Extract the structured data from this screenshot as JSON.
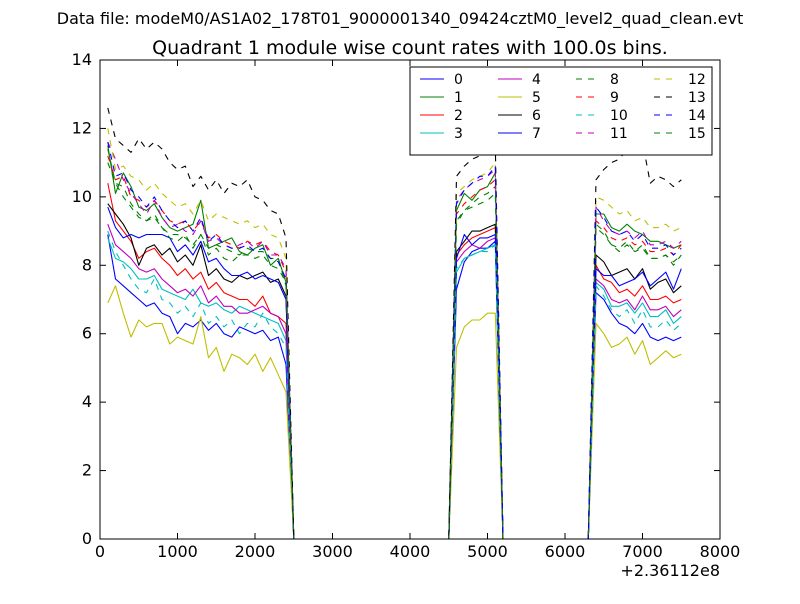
{
  "figure": {
    "suptitle": "Data file: modeM0/AS1A02_178T01_9000001340_09424cztM0_level2_quad_clean.evt"
  },
  "chart_data": {
    "type": "line",
    "title": "Quadrant 1 module wise count rates with 100.0s bins.",
    "xlabel": "",
    "ylabel": "",
    "x_offset_label": "+2.36112e8",
    "xlim": [
      0,
      8000
    ],
    "ylim": [
      0,
      14
    ],
    "xticks": [
      0,
      1000,
      2000,
      3000,
      4000,
      5000,
      6000,
      7000,
      8000
    ],
    "yticks": [
      0,
      2,
      4,
      6,
      8,
      10,
      12,
      14
    ],
    "xtick_labels": [
      "0",
      "1000",
      "2000",
      "3000",
      "4000",
      "5000",
      "6000",
      "7000",
      "8000"
    ],
    "ytick_labels": [
      "0",
      "2",
      "4",
      "6",
      "8",
      "10",
      "12",
      "14"
    ],
    "grid": false,
    "legend_position": "top-right",
    "legend_columns": 4,
    "segments": [
      {
        "x_start": 100,
        "x_step": 100,
        "count": 24
      },
      {
        "x_start": 4600,
        "x_step": 100,
        "count": 6
      },
      {
        "x_start": 6400,
        "x_step": 100,
        "count": 12
      }
    ],
    "series": [
      {
        "name": "0",
        "color": "#0000ff",
        "dash": "solid",
        "seg1": [
          8.9,
          7.6,
          7.4,
          7.2,
          7.0,
          6.8,
          6.9,
          6.6,
          6.5,
          6.0,
          6.3,
          6.2,
          6.4,
          6.1,
          6.3,
          6.0,
          5.9,
          6.2,
          6.1,
          6.0,
          6.1,
          5.8,
          5.9,
          5.1
        ],
        "seg2": [
          7.3,
          8.1,
          8.4,
          8.5,
          8.5,
          8.7
        ],
        "seg3": [
          7.2,
          7.0,
          6.6,
          6.3,
          6.2,
          6.0,
          6.3,
          5.9,
          5.8,
          5.9,
          5.8,
          5.9
        ]
      },
      {
        "name": "1",
        "color": "#008000",
        "dash": "solid",
        "seg1": [
          11.5,
          10.1,
          10.7,
          10.3,
          9.7,
          9.6,
          9.8,
          9.4,
          9.1,
          9.0,
          9.1,
          9.2,
          9.9,
          8.5,
          8.6,
          8.7,
          8.8,
          8.4,
          8.3,
          8.5,
          8.6,
          8.0,
          8.2,
          7.5
        ],
        "seg2": [
          9.6,
          10.1,
          9.9,
          10.2,
          10.3,
          10.7
        ],
        "seg3": [
          9.5,
          9.5,
          9.1,
          9.0,
          9.2,
          9.0,
          8.9,
          8.7,
          8.7,
          8.6,
          8.5,
          8.6
        ]
      },
      {
        "name": "2",
        "color": "#ff0000",
        "dash": "solid",
        "seg1": [
          10.4,
          9.3,
          9.0,
          8.7,
          8.2,
          8.4,
          8.5,
          8.2,
          8.0,
          7.7,
          7.9,
          7.6,
          7.8,
          7.3,
          7.5,
          7.2,
          7.1,
          7.0,
          7.0,
          6.8,
          7.1,
          6.6,
          6.5,
          6.3
        ],
        "seg2": [
          8.3,
          8.6,
          8.8,
          8.9,
          9.0,
          9.1
        ],
        "seg3": [
          8.0,
          7.6,
          7.5,
          7.2,
          7.3,
          7.1,
          7.4,
          7.0,
          7.0,
          7.1,
          6.9,
          7.0
        ]
      },
      {
        "name": "3",
        "color": "#00bfbf",
        "dash": "solid",
        "seg1": [
          8.8,
          8.2,
          8.1,
          7.9,
          7.6,
          7.6,
          7.7,
          7.3,
          7.2,
          7.1,
          7.0,
          7.3,
          6.9,
          6.8,
          6.9,
          6.7,
          6.6,
          6.8,
          6.7,
          6.6,
          6.5,
          6.4,
          6.3,
          5.8
        ],
        "seg2": [
          7.8,
          8.2,
          8.3,
          8.4,
          8.5,
          8.6
        ],
        "seg3": [
          7.5,
          7.3,
          6.8,
          6.8,
          6.9,
          6.6,
          6.9,
          6.5,
          6.5,
          6.7,
          6.3,
          6.5
        ]
      },
      {
        "name": "4",
        "color": "#bf00bf",
        "dash": "solid",
        "seg1": [
          9.2,
          8.6,
          8.4,
          8.2,
          7.9,
          7.8,
          7.9,
          7.6,
          7.4,
          7.2,
          7.3,
          7.1,
          7.4,
          6.9,
          7.1,
          6.8,
          6.8,
          6.6,
          6.6,
          6.7,
          6.8,
          6.6,
          6.5,
          6.0
        ],
        "seg2": [
          8.1,
          8.4,
          8.6,
          8.5,
          8.7,
          8.8
        ],
        "seg3": [
          7.6,
          7.4,
          7.0,
          6.9,
          7.0,
          6.7,
          7.1,
          6.7,
          6.7,
          6.8,
          6.5,
          6.7
        ]
      },
      {
        "name": "5",
        "color": "#bfbf00",
        "dash": "solid",
        "seg1": [
          6.9,
          7.4,
          6.6,
          5.9,
          6.4,
          6.2,
          6.3,
          6.3,
          5.7,
          5.9,
          5.8,
          5.7,
          6.5,
          5.3,
          5.6,
          4.9,
          5.4,
          5.3,
          5.1,
          5.4,
          4.9,
          5.3,
          4.8,
          4.3
        ],
        "seg2": [
          5.6,
          6.2,
          6.4,
          6.4,
          6.6,
          6.6
        ],
        "seg3": [
          6.3,
          6.0,
          5.6,
          5.7,
          5.9,
          5.4,
          5.8,
          5.1,
          5.3,
          5.5,
          5.3,
          5.4
        ]
      },
      {
        "name": "6",
        "color": "#000000",
        "dash": "solid",
        "seg1": [
          9.8,
          9.5,
          9.2,
          8.8,
          8.0,
          8.5,
          8.6,
          8.3,
          8.5,
          8.1,
          8.3,
          8.0,
          8.6,
          7.7,
          7.9,
          7.6,
          7.5,
          7.7,
          7.6,
          7.7,
          7.8,
          7.5,
          7.6,
          7.1
        ],
        "seg2": [
          8.4,
          8.7,
          9.0,
          9.0,
          9.1,
          9.2
        ],
        "seg3": [
          8.3,
          8.1,
          7.7,
          7.8,
          7.9,
          7.6,
          7.9,
          7.3,
          7.5,
          7.6,
          7.2,
          7.4
        ]
      },
      {
        "name": "7",
        "color": "#0000ff",
        "dash": "solid",
        "seg1": [
          9.7,
          9.1,
          8.8,
          8.9,
          8.8,
          8.9,
          8.9,
          8.9,
          8.8,
          8.4,
          8.6,
          8.3,
          8.7,
          8.1,
          8.2,
          7.9,
          7.7,
          7.7,
          7.8,
          7.6,
          7.7,
          7.6,
          7.5,
          7.0
        ],
        "seg2": [
          8.2,
          8.9,
          8.6,
          8.8,
          8.8,
          8.9
        ],
        "seg3": [
          7.9,
          7.7,
          7.7,
          7.4,
          7.5,
          7.6,
          7.8,
          7.4,
          7.6,
          7.8,
          7.3,
          7.9
        ]
      },
      {
        "name": "8",
        "color": "#008000",
        "dash": "dashed",
        "seg1": [
          11.4,
          10.4,
          10.3,
          9.8,
          9.5,
          9.3,
          9.4,
          9.1,
          8.9,
          8.9,
          8.8,
          8.6,
          8.9,
          8.5,
          8.6,
          8.5,
          8.4,
          8.3,
          8.5,
          8.4,
          8.4,
          8.2,
          8.2,
          7.4
        ],
        "seg2": [
          9.3,
          9.6,
          9.8,
          10.0,
          10.1,
          10.3
        ],
        "seg3": [
          9.1,
          8.9,
          8.6,
          8.4,
          8.6,
          8.4,
          8.5,
          8.2,
          8.2,
          8.3,
          8.0,
          8.3
        ]
      },
      {
        "name": "9",
        "color": "#ff0000",
        "dash": "dashed",
        "seg1": [
          11.2,
          10.5,
          10.6,
          10.0,
          9.9,
          9.7,
          9.9,
          9.6,
          9.3,
          9.2,
          9.3,
          9.0,
          9.3,
          8.8,
          8.9,
          8.7,
          8.6,
          8.5,
          8.7,
          8.6,
          8.7,
          8.4,
          8.3,
          7.8
        ],
        "seg2": [
          9.5,
          9.8,
          10.0,
          10.2,
          10.3,
          10.5
        ],
        "seg3": [
          9.3,
          9.1,
          8.8,
          8.7,
          8.8,
          8.6,
          8.7,
          8.4,
          8.4,
          8.5,
          8.3,
          8.6
        ]
      },
      {
        "name": "10",
        "color": "#00bfbf",
        "dash": "dashed",
        "seg1": [
          9.0,
          8.4,
          8.0,
          7.6,
          7.3,
          7.2,
          7.6,
          7.0,
          6.9,
          6.6,
          6.8,
          6.5,
          6.9,
          6.3,
          6.5,
          6.2,
          6.4,
          6.0,
          6.3,
          6.2,
          6.6,
          6.2,
          6.0,
          5.6
        ],
        "seg2": [
          7.9,
          8.2,
          8.3,
          8.4,
          8.4,
          8.6
        ],
        "seg3": [
          7.4,
          7.1,
          6.7,
          6.5,
          6.7,
          6.3,
          6.7,
          6.2,
          6.2,
          6.4,
          6.1,
          6.3
        ]
      },
      {
        "name": "11",
        "color": "#bf00bf",
        "dash": "dashed",
        "seg1": [
          11.6,
          11.1,
          10.5,
          10.1,
          9.8,
          9.5,
          9.9,
          9.4,
          9.1,
          9.2,
          9.0,
          8.9,
          9.3,
          8.7,
          8.8,
          8.6,
          8.5,
          8.6,
          8.7,
          8.5,
          8.7,
          8.3,
          8.3,
          7.9
        ],
        "seg2": [
          9.9,
          10.2,
          10.4,
          10.5,
          10.6,
          10.8
        ],
        "seg3": [
          9.7,
          9.3,
          9.0,
          8.9,
          9.0,
          8.8,
          9.0,
          8.6,
          8.6,
          8.7,
          8.5,
          8.7
        ]
      },
      {
        "name": "12",
        "color": "#bfbf00",
        "dash": "dashed",
        "seg1": [
          12.0,
          10.8,
          10.9,
          10.6,
          10.5,
          10.2,
          10.4,
          10.1,
          9.9,
          9.7,
          9.8,
          9.5,
          9.9,
          9.3,
          9.5,
          9.4,
          9.3,
          9.2,
          9.3,
          9.1,
          9.2,
          8.9,
          8.8,
          8.2
        ],
        "seg2": [
          10.1,
          10.3,
          10.5,
          10.6,
          10.7,
          11.0
        ],
        "seg3": [
          10.0,
          9.9,
          9.7,
          9.5,
          9.6,
          9.3,
          9.4,
          9.1,
          9.1,
          9.2,
          9.0,
          9.1
        ]
      },
      {
        "name": "13",
        "color": "#000000",
        "dash": "dashed",
        "seg1": [
          12.6,
          11.7,
          11.5,
          11.3,
          11.7,
          11.4,
          11.6,
          11.4,
          11.0,
          10.8,
          10.9,
          10.3,
          10.6,
          10.2,
          10.5,
          10.1,
          10.4,
          10.3,
          10.5,
          10.0,
          9.9,
          9.6,
          9.5,
          8.8
        ],
        "seg2": [
          10.6,
          10.9,
          11.1,
          11.2,
          11.3,
          11.5
        ],
        "seg3": [
          10.5,
          10.8,
          11.0,
          11.1,
          11.4,
          11.3,
          11.6,
          10.4,
          10.6,
          10.5,
          10.3,
          10.5
        ]
      },
      {
        "name": "14",
        "color": "#0000ff",
        "dash": "dashed",
        "seg1": [
          11.6,
          10.6,
          10.7,
          10.2,
          10.0,
          9.7,
          10.0,
          9.6,
          9.3,
          9.1,
          9.3,
          9.0,
          9.4,
          8.7,
          8.9,
          8.6,
          8.5,
          8.5,
          8.6,
          8.4,
          8.5,
          8.2,
          8.1,
          7.6
        ],
        "seg2": [
          9.8,
          10.2,
          10.4,
          10.6,
          10.6,
          10.9
        ],
        "seg3": [
          9.7,
          9.4,
          9.0,
          8.9,
          9.0,
          8.7,
          8.9,
          8.5,
          8.5,
          8.6,
          8.3,
          8.5
        ]
      },
      {
        "name": "15",
        "color": "#008000",
        "dash": "dashed",
        "seg1": [
          11.0,
          10.4,
          10.0,
          9.7,
          9.4,
          9.3,
          9.5,
          9.1,
          8.8,
          8.7,
          8.9,
          8.5,
          8.9,
          8.3,
          8.5,
          8.2,
          8.1,
          8.3,
          8.3,
          8.2,
          8.3,
          8.0,
          7.9,
          7.5
        ],
        "seg2": [
          9.2,
          9.6,
          9.7,
          9.8,
          9.9,
          10.1
        ],
        "seg3": [
          9.2,
          9.0,
          8.6,
          8.5,
          8.7,
          8.4,
          8.6,
          8.2,
          8.2,
          8.3,
          8.1,
          8.3
        ]
      }
    ]
  }
}
